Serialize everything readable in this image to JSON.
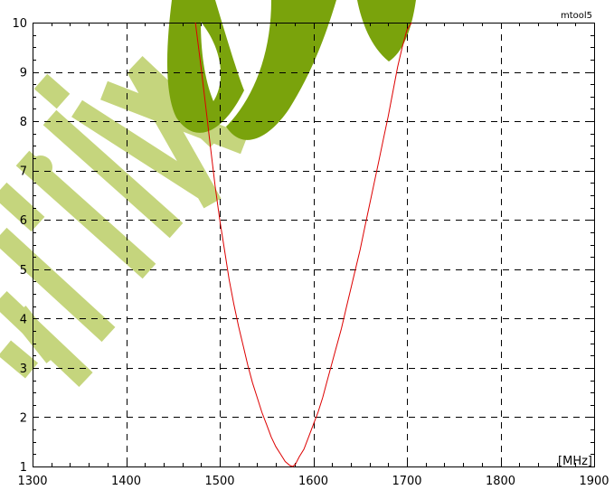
{
  "chart_data": {
    "type": "line",
    "title": "",
    "xlabel": "",
    "ylabel": "",
    "x_unit_label": "[MHz]",
    "corner_label": "mtool5",
    "xlim": [
      1300,
      1900
    ],
    "ylim": [
      1,
      10
    ],
    "x_ticks": [
      1300,
      1400,
      1500,
      1600,
      1700,
      1800,
      1900
    ],
    "y_ticks": [
      1,
      2,
      3,
      4,
      5,
      6,
      7,
      8,
      9,
      10
    ],
    "grid": true,
    "series": [
      {
        "color": "#dd0000",
        "x": [
          1474,
          1480,
          1485,
          1490,
          1495,
          1500,
          1505,
          1510,
          1515,
          1520,
          1525,
          1530,
          1535,
          1540,
          1545,
          1550,
          1555,
          1560,
          1565,
          1570,
          1575,
          1578,
          1581,
          1585,
          1590,
          1595,
          1600,
          1605,
          1610,
          1615,
          1620,
          1625,
          1630,
          1635,
          1640,
          1645,
          1650,
          1655,
          1660,
          1665,
          1670,
          1675,
          1680,
          1685,
          1690,
          1695,
          1700,
          1705
        ],
        "y": [
          10,
          9.1,
          8.3,
          7.5,
          6.7,
          6.0,
          5.4,
          4.8,
          4.3,
          3.85,
          3.45,
          3.05,
          2.7,
          2.4,
          2.1,
          1.85,
          1.6,
          1.4,
          1.25,
          1.1,
          1.02,
          1.0,
          1.05,
          1.2,
          1.35,
          1.6,
          1.85,
          2.1,
          2.4,
          2.75,
          3.1,
          3.45,
          3.8,
          4.2,
          4.6,
          5.0,
          5.4,
          5.85,
          6.3,
          6.75,
          7.2,
          7.65,
          8.1,
          8.6,
          9.1,
          9.5,
          9.85,
          10
        ]
      }
    ]
  },
  "watermark": {
    "color_light": "#c5d57d",
    "color_dark": "#7aa30c"
  }
}
